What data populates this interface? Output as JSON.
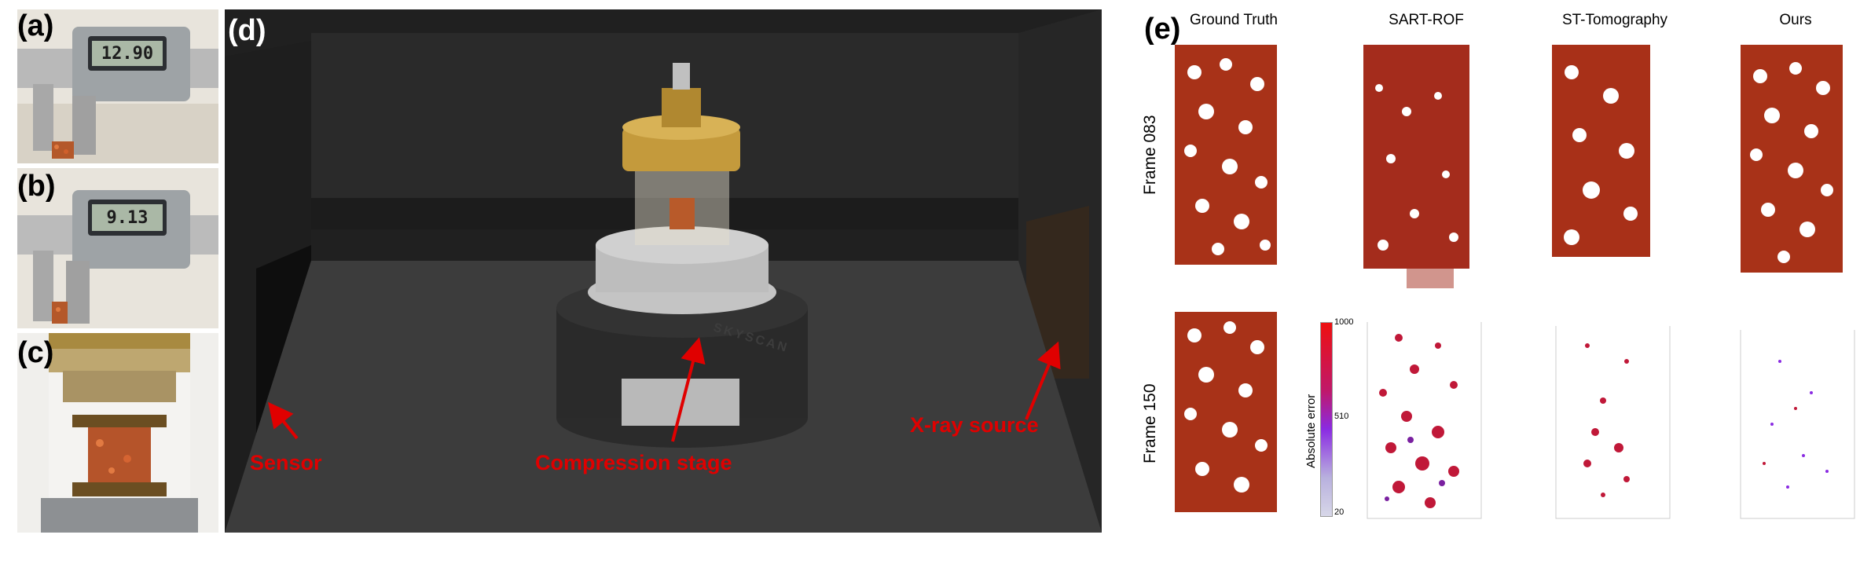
{
  "panels": {
    "a": {
      "letter": "(a)",
      "caliper_reading": "12.90"
    },
    "b": {
      "letter": "(b)",
      "caliper_reading": "9.13"
    },
    "c": {
      "letter": "(c)"
    },
    "d": {
      "letter": "(d)",
      "labels": {
        "sensor": "Sensor",
        "stage": "Compression stage",
        "source": "X-ray source"
      },
      "stage_brand": "SKYSCAN"
    },
    "e": {
      "letter": "(e)",
      "columns": [
        "Ground Truth",
        "SART-ROF",
        "ST-Tomography",
        "Ours"
      ],
      "rows": [
        "Frame 083",
        "Frame 150"
      ],
      "colorbar": {
        "title": "Absolute error",
        "ticks": [
          "1000",
          "510",
          "20"
        ],
        "colors": [
          "#ee1010",
          "#8a2be2",
          "#d7d7e8"
        ]
      }
    }
  },
  "colors": {
    "label_red": "#e00000",
    "foam": "#b33a1a",
    "foam_highlight": "#e07030",
    "error_high": "#d01030",
    "error_low": "#7a20a0"
  }
}
